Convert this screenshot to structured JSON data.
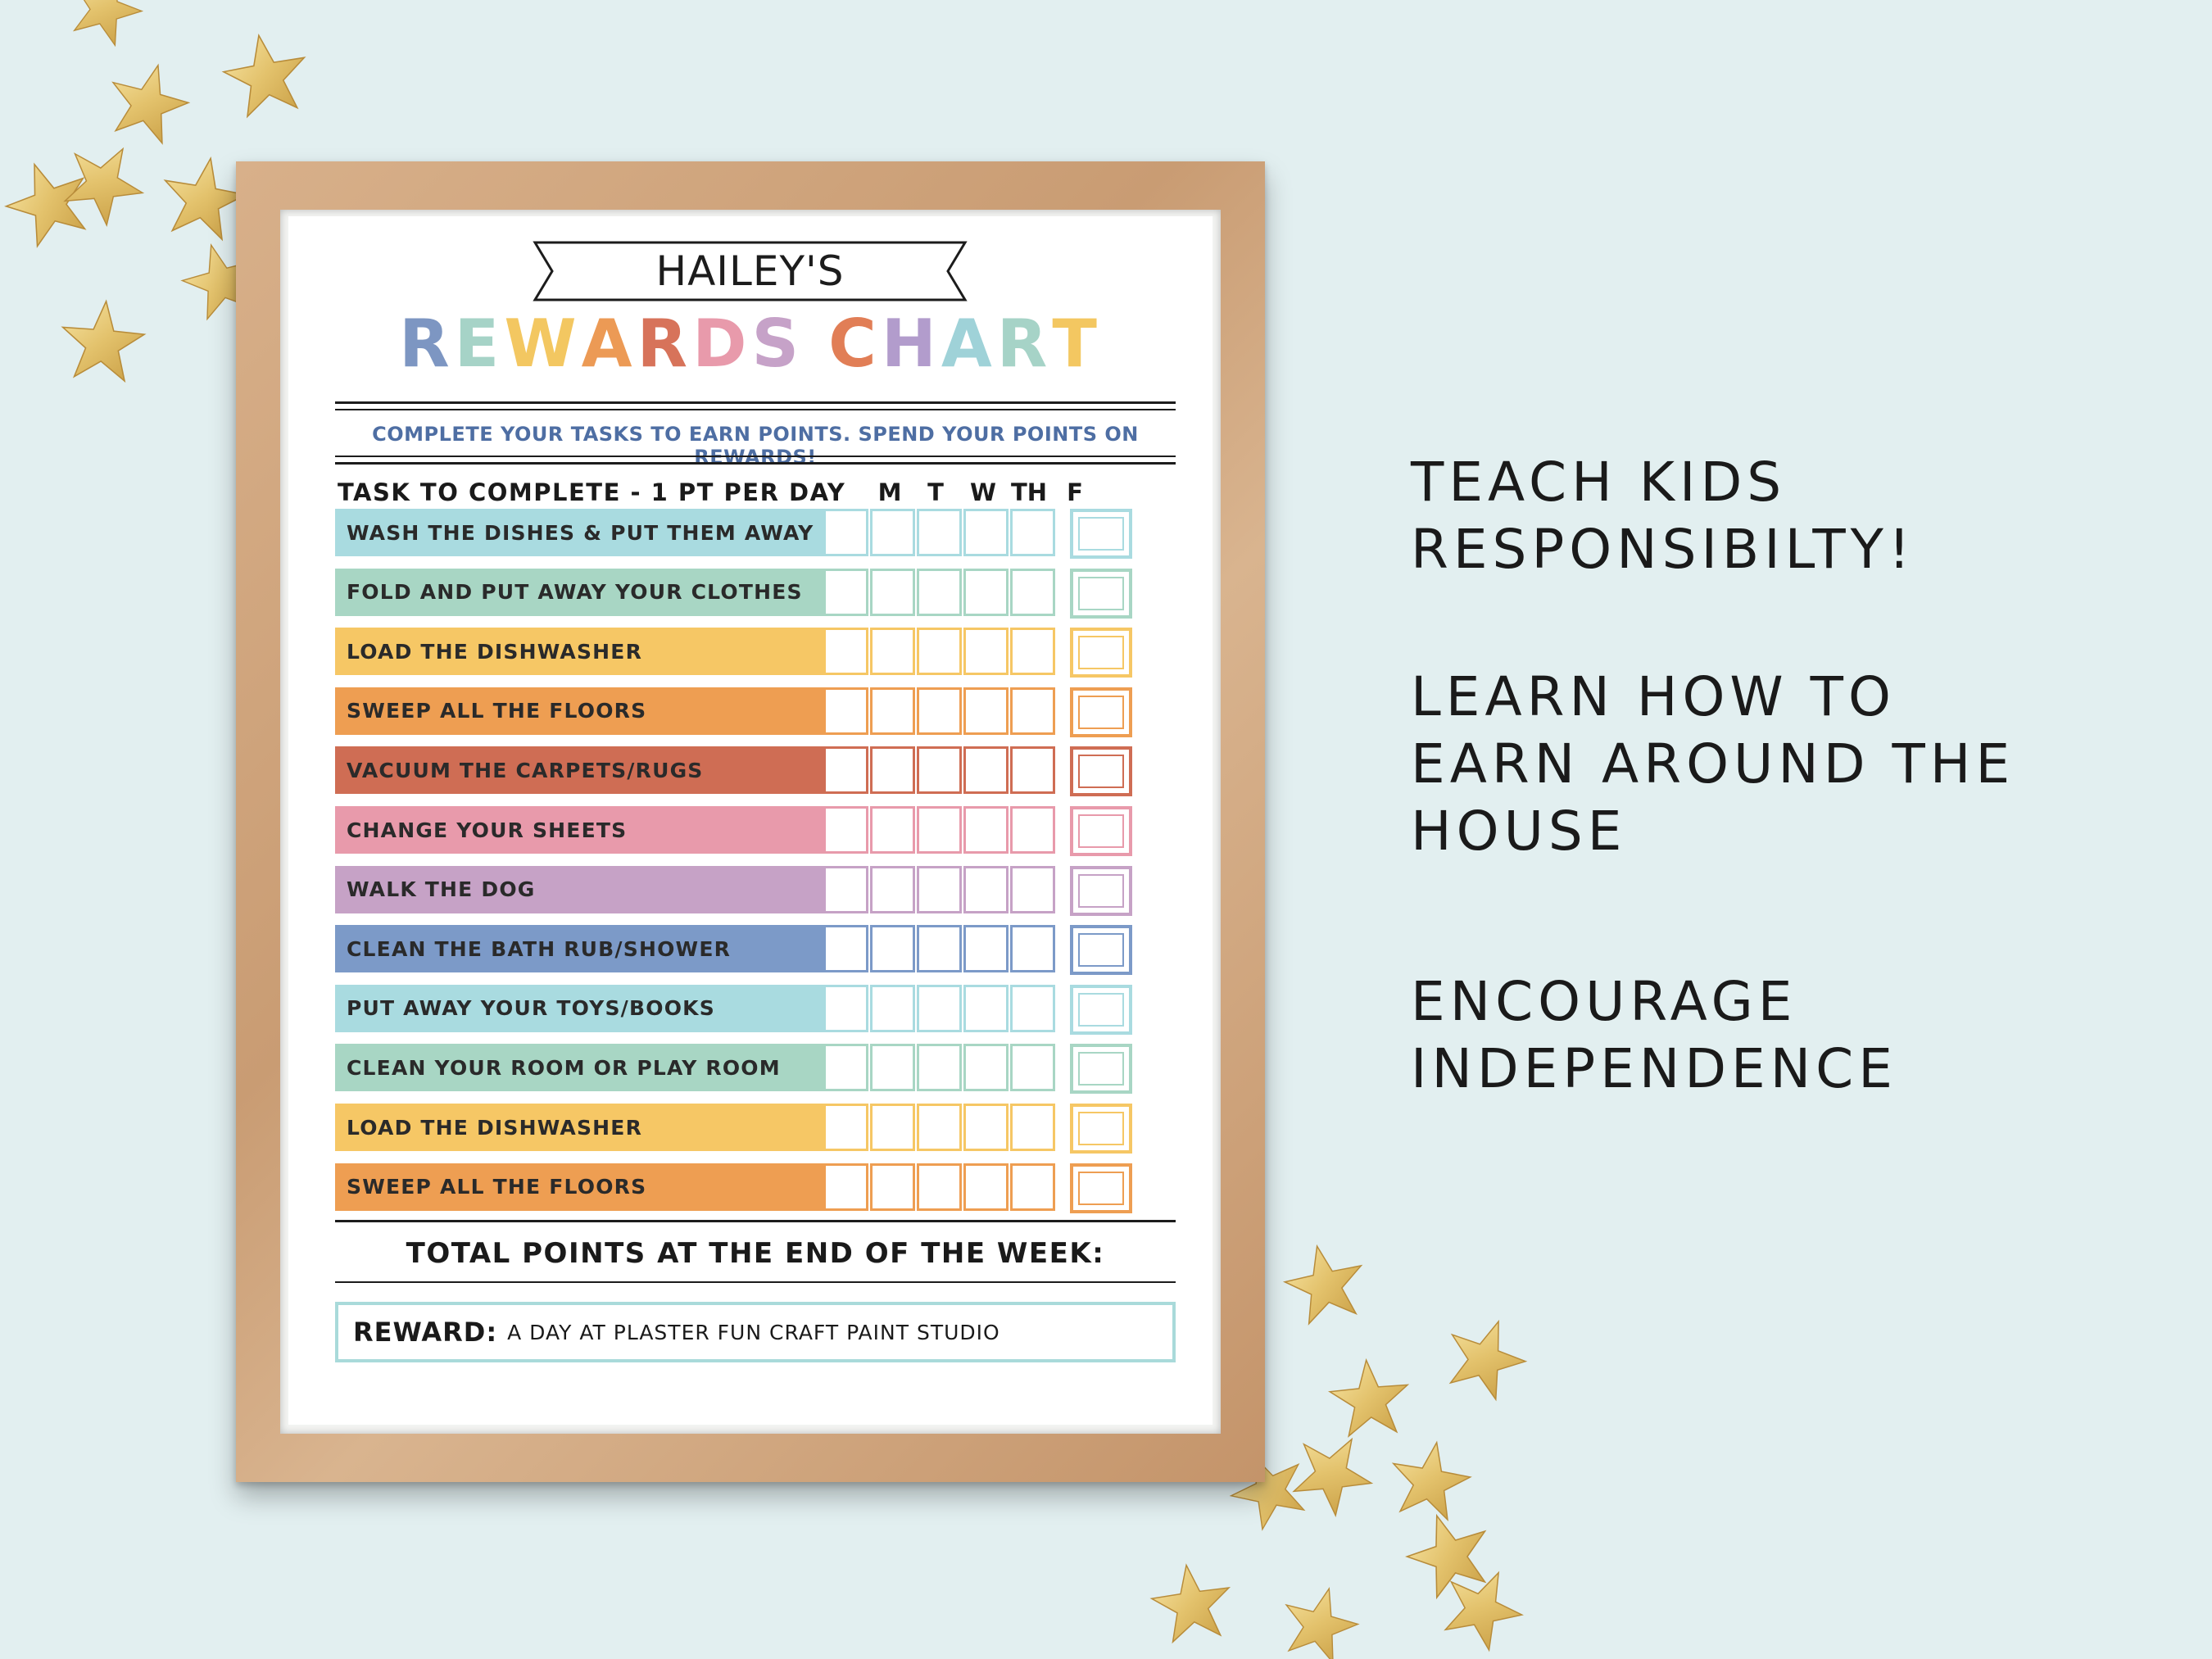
{
  "chart": {
    "name": "HAILEY'S",
    "title_letters": [
      {
        "char": "R",
        "color": "#7d96c2"
      },
      {
        "char": "E",
        "color": "#a6d3c7"
      },
      {
        "char": "W",
        "color": "#f3c761"
      },
      {
        "char": "A",
        "color": "#ec9a55"
      },
      {
        "char": "R",
        "color": "#d7735a"
      },
      {
        "char": "D",
        "color": "#e89aab"
      },
      {
        "char": "S",
        "color": "#c6a2c8"
      },
      {
        "char": " ",
        "color": "#ffffff"
      },
      {
        "char": "C",
        "color": "#e17e56"
      },
      {
        "char": "H",
        "color": "#b29ccc"
      },
      {
        "char": "A",
        "color": "#9fd2d8"
      },
      {
        "char": "R",
        "color": "#a6d3c7"
      },
      {
        "char": "T",
        "color": "#f3c761"
      }
    ],
    "subtitle": "COMPLETE YOUR TASKS TO EARN POINTS. SPEND YOUR POINTS ON REWARDS!",
    "task_header": "TASK TO COMPLETE - 1 PT PER DAY",
    "days": [
      "M",
      "T",
      "W",
      "TH",
      "F"
    ],
    "tasks": [
      {
        "label": "WASH THE DISHES & PUT THEM AWAY",
        "color": "#a9dbe0",
        "border": "#a9dbe0"
      },
      {
        "label": "FOLD AND PUT AWAY YOUR CLOTHES",
        "color": "#a8d6c4",
        "border": "#a8d6c4"
      },
      {
        "label": "LOAD THE DISHWASHER",
        "color": "#f6c765",
        "border": "#f6c765"
      },
      {
        "label": "SWEEP ALL THE FLOORS",
        "color": "#ee9e52",
        "border": "#ee9e52"
      },
      {
        "label": "VACUUM THE CARPETS/RUGS",
        "color": "#cf6d54",
        "border": "#cf6d54"
      },
      {
        "label": "CHANGE YOUR SHEETS",
        "color": "#e89aab",
        "border": "#e89aab"
      },
      {
        "label": "WALK THE DOG",
        "color": "#c6a2c6",
        "border": "#c6a2c6"
      },
      {
        "label": "CLEAN THE BATH RUB/SHOWER",
        "color": "#7c9ac8",
        "border": "#7c9ac8"
      },
      {
        "label": "PUT AWAY YOUR TOYS/BOOKS",
        "color": "#a9dbe0",
        "border": "#a9dbe0"
      },
      {
        "label": "CLEAN YOUR ROOM OR PLAY ROOM",
        "color": "#a8d6c4",
        "border": "#a8d6c4"
      },
      {
        "label": "LOAD THE DISHWASHER",
        "color": "#f6c765",
        "border": "#f6c765"
      },
      {
        "label": "SWEEP ALL THE FLOORS",
        "color": "#ee9e52",
        "border": "#ee9e52"
      }
    ],
    "total_label": "TOTAL POINTS AT THE END OF THE WEEK:",
    "reward_label": "REWARD:",
    "reward_text": "A DAY AT PLASTER FUN CRAFT PAINT STUDIO"
  },
  "pitch": {
    "block1": [
      "TEACH KIDS",
      "RESPONSIBILTY!"
    ],
    "block2": [
      "LEARN HOW TO",
      "EARN AROUND THE",
      "HOUSE"
    ],
    "block3": [
      "ENCOURAGE",
      "INDEPENDENCE"
    ]
  }
}
